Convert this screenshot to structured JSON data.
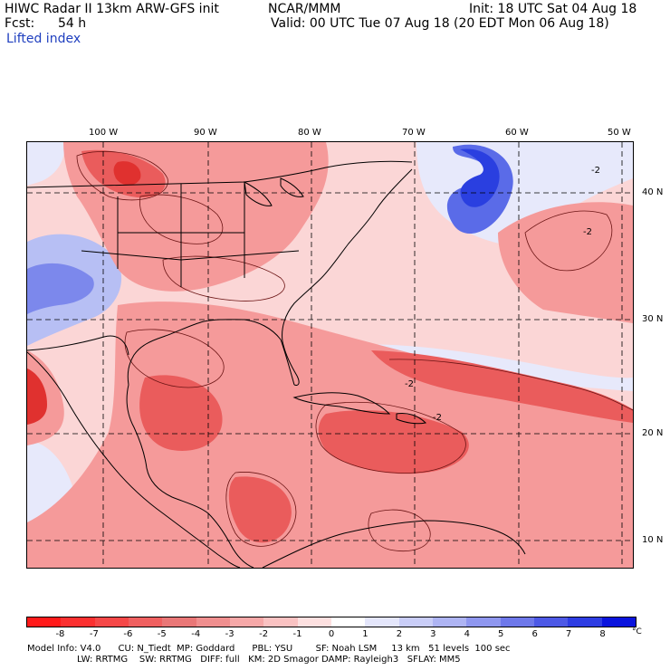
{
  "header": {
    "model_title": "HIWC Radar II 13km ARW-GFS init",
    "org": "NCAR/MMM",
    "init": "Init: 18 UTC Sat 04 Aug 18",
    "fcst_label": "Fcst:",
    "fcst_value": "54 h",
    "valid": "Valid: 00 UTC Tue 07 Aug 18 (20 EDT Mon 06 Aug 18)",
    "field_name": "Lifted index"
  },
  "map": {
    "lon_labels": [
      "100 W",
      "90 W",
      "80 W",
      "70 W",
      "60 W",
      "50 W"
    ],
    "lat_labels": [
      "40 N",
      "30 N",
      "20 N",
      "10 N"
    ],
    "contour_label": "-2",
    "colors": {
      "background": "#fbd6d6",
      "moderate": "#f59a9a",
      "strong": "#ea5c5c",
      "extreme": "#e0312f",
      "cool_light": "#e7e9fb",
      "cool_mid": "#b7bff4",
      "cool_strong": "#5a6be8",
      "cool_deep": "#2a3fe0",
      "contour": "#6b1414",
      "border": "#000000"
    }
  },
  "colorbar": {
    "ticks": [
      "-8",
      "-7",
      "-6",
      "-5",
      "-4",
      "-3",
      "-2",
      "-1",
      "0",
      "1",
      "2",
      "3",
      "4",
      "5",
      "6",
      "7",
      "8"
    ],
    "unit": "°C",
    "colors": [
      "#ff1a1a",
      "#fb3030",
      "#f54848",
      "#ef6060",
      "#e97777",
      "#f08f8f",
      "#f6a8a8",
      "#fac2c2",
      "#fde0e0",
      "#ffffff",
      "#e4e6fb",
      "#c9cdf7",
      "#aeb4f3",
      "#8f97ef",
      "#6e78ea",
      "#4d59e6",
      "#2e3de3",
      "#0a14dd"
    ]
  },
  "footer": {
    "line1": "Model Info: V4.0      CU: N_Tiedt  MP: Goddard      PBL: YSU        SF: Noah LSM     13 km   51 levels  100 sec",
    "line2": "LW: RRTMG    SW: RRTMG   DIFF: full   KM: 2D Smagor DAMP: Rayleigh3   SFLAY: MM5"
  }
}
